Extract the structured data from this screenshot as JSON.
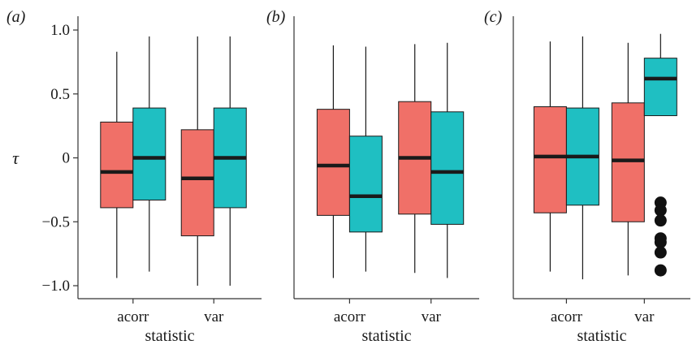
{
  "colors": {
    "series_1": "#F07068",
    "series_2": "#1FBFC2",
    "median": "#1a1a1a",
    "axis": "#333333",
    "outlier": "#111111"
  },
  "chart_data": [
    {
      "type": "boxplot",
      "panel_label": "(a)",
      "xlabel": "statistic",
      "ylabel": "τ",
      "ylim": [
        -1.1,
        1.1
      ],
      "yticks": [
        1.0,
        0.5,
        0,
        -0.5,
        -1.0
      ],
      "ytick_labels": [
        "1.0",
        "0.5",
        "0",
        "−0.5",
        "−1.0"
      ],
      "categories": [
        "acorr",
        "var"
      ],
      "series": [
        {
          "color_key": "series_1",
          "boxes": [
            {
              "category": "acorr",
              "whisker_low": -0.94,
              "q1": -0.39,
              "median": -0.11,
              "q3": 0.28,
              "whisker_high": 0.83,
              "outliers": []
            },
            {
              "category": "var",
              "whisker_low": -1.0,
              "q1": -0.61,
              "median": -0.16,
              "q3": 0.22,
              "whisker_high": 0.95,
              "outliers": []
            }
          ]
        },
        {
          "color_key": "series_2",
          "boxes": [
            {
              "category": "acorr",
              "whisker_low": -0.89,
              "q1": -0.33,
              "median": 0.0,
              "q3": 0.39,
              "whisker_high": 0.95,
              "outliers": []
            },
            {
              "category": "var",
              "whisker_low": -1.0,
              "q1": -0.39,
              "median": 0.0,
              "q3": 0.39,
              "whisker_high": 0.95,
              "outliers": []
            }
          ]
        }
      ],
      "show_yaxis_ticks": true
    },
    {
      "type": "boxplot",
      "panel_label": "(b)",
      "xlabel": "statistic",
      "ylim": [
        -1.1,
        1.1
      ],
      "categories": [
        "acorr",
        "var"
      ],
      "series": [
        {
          "color_key": "series_1",
          "boxes": [
            {
              "category": "acorr",
              "whisker_low": -0.94,
              "q1": -0.45,
              "median": -0.06,
              "q3": 0.38,
              "whisker_high": 0.88,
              "outliers": []
            },
            {
              "category": "var",
              "whisker_low": -0.9,
              "q1": -0.44,
              "median": 0.0,
              "q3": 0.44,
              "whisker_high": 0.89,
              "outliers": []
            }
          ]
        },
        {
          "color_key": "series_2",
          "boxes": [
            {
              "category": "acorr",
              "whisker_low": -0.89,
              "q1": -0.58,
              "median": -0.3,
              "q3": 0.17,
              "whisker_high": 0.87,
              "outliers": []
            },
            {
              "category": "var",
              "whisker_low": -0.94,
              "q1": -0.52,
              "median": -0.11,
              "q3": 0.36,
              "whisker_high": 0.9,
              "outliers": []
            }
          ]
        }
      ],
      "show_yaxis_ticks": false
    },
    {
      "type": "boxplot",
      "panel_label": "(c)",
      "xlabel": "statistic",
      "ylim": [
        -1.1,
        1.1
      ],
      "categories": [
        "acorr",
        "var"
      ],
      "series": [
        {
          "color_key": "series_1",
          "boxes": [
            {
              "category": "acorr",
              "whisker_low": -0.89,
              "q1": -0.43,
              "median": 0.01,
              "q3": 0.4,
              "whisker_high": 0.91,
              "outliers": []
            },
            {
              "category": "var",
              "whisker_low": -0.92,
              "q1": -0.5,
              "median": -0.02,
              "q3": 0.43,
              "whisker_high": 0.9,
              "outliers": []
            }
          ]
        },
        {
          "color_key": "series_2",
          "boxes": [
            {
              "category": "acorr",
              "whisker_low": -0.95,
              "q1": -0.37,
              "median": 0.01,
              "q3": 0.39,
              "whisker_high": 0.95,
              "outliers": []
            },
            {
              "category": "var",
              "whisker_low": 0.33,
              "q1": 0.33,
              "median": 0.62,
              "q3": 0.78,
              "whisker_high": 0.97,
              "outliers": [
                -0.35,
                -0.41,
                -0.49,
                -0.63,
                -0.66,
                -0.74,
                -0.88
              ]
            }
          ]
        }
      ],
      "show_yaxis_ticks": false
    }
  ]
}
